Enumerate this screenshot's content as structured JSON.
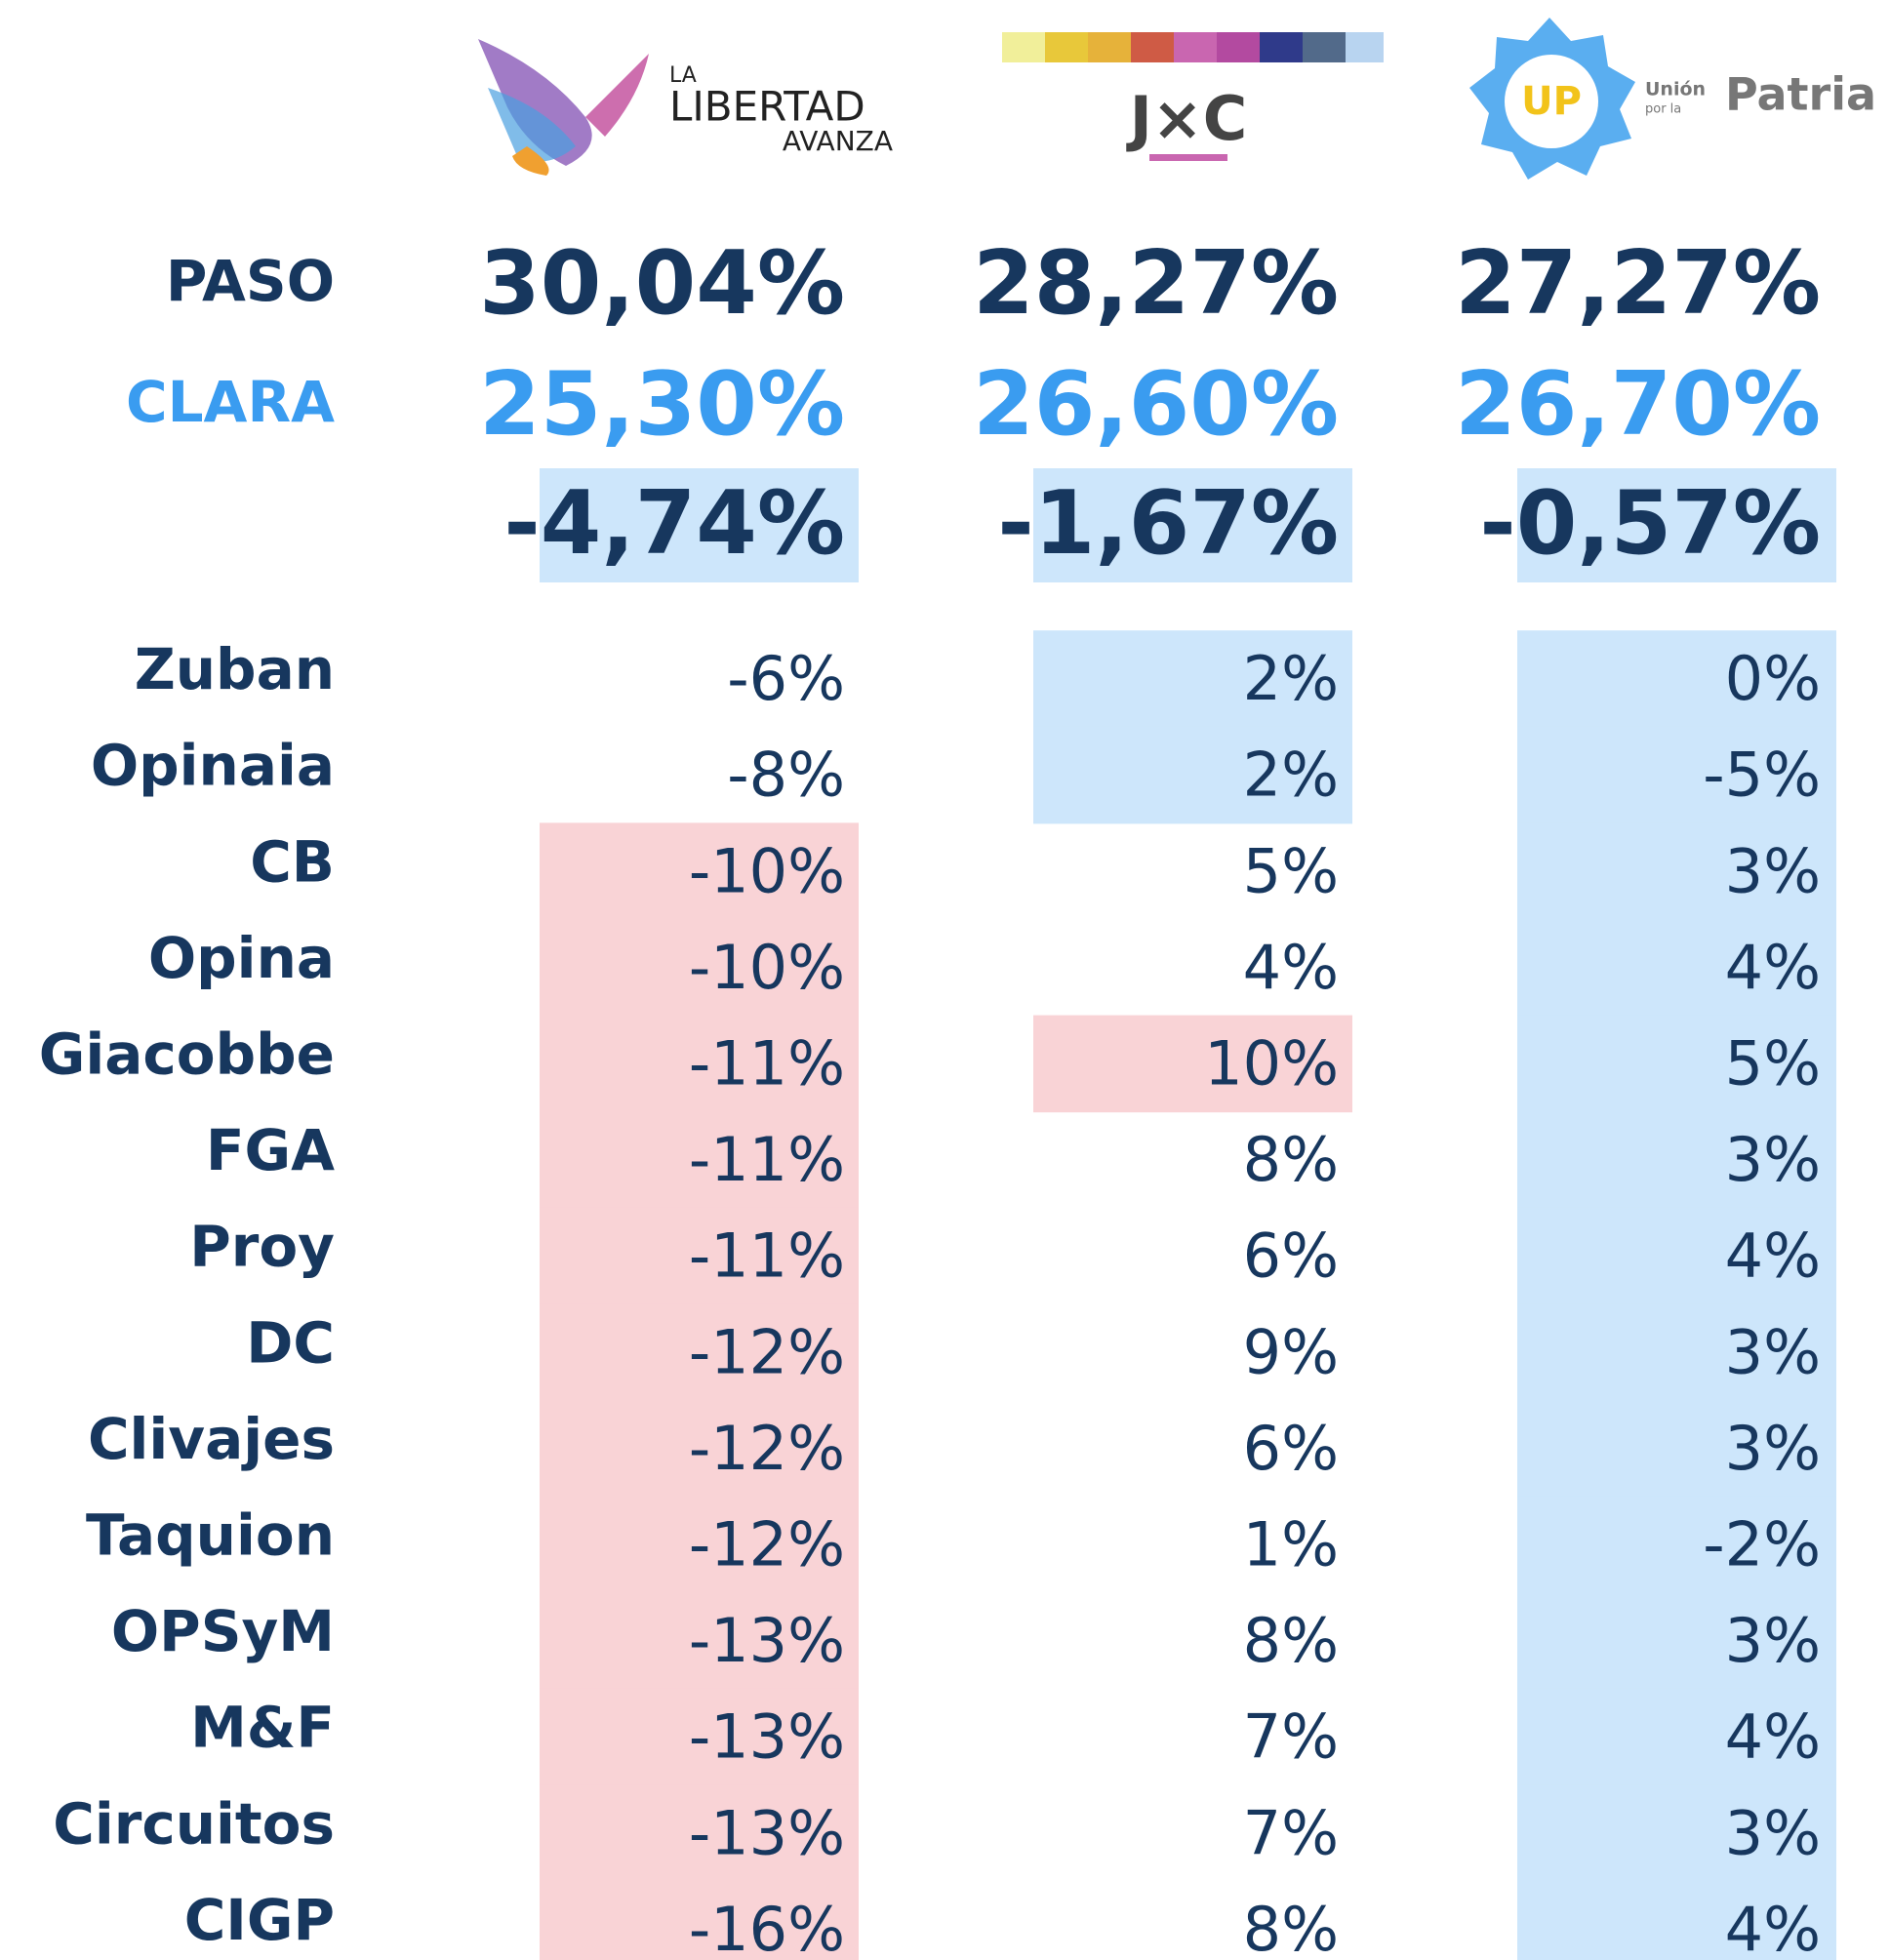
{
  "logos": [
    {
      "lines": [
        "LA",
        "LIBERTAD",
        "AVANZA"
      ]
    },
    {
      "lines": [
        "J×C"
      ]
    },
    {
      "lines": [
        "UP",
        "Unión",
        "por la",
        "Patria"
      ]
    }
  ],
  "summary": [
    {
      "label": "PASO",
      "values": [
        "30,04%",
        "28,27%",
        "27,27%"
      ],
      "color": "#17375e"
    },
    {
      "label": "CLARA",
      "values": [
        "25,30%",
        "26,60%",
        "26,70%"
      ],
      "color": "#3a9cf0"
    },
    {
      "values": [
        "-4,74%",
        "-1,67%",
        "-0,57%"
      ],
      "color": "#17375e",
      "shading": "#cde6fb"
    }
  ],
  "polls": [
    {
      "label": "Zuban",
      "values": [
        "-6%",
        "2%",
        "0%"
      ],
      "shading": [
        null,
        "#cde6fb",
        "#cde6fb"
      ]
    },
    {
      "label": "Opinaia",
      "values": [
        "-8%",
        "2%",
        "-5%"
      ],
      "shading": [
        null,
        "#cde6fb",
        "#cde6fb"
      ]
    },
    {
      "label": "CB",
      "values": [
        "-10%",
        "5%",
        "3%"
      ],
      "shading": [
        "#f9d3d6",
        null,
        "#cde6fb"
      ]
    },
    {
      "label": "Opina",
      "values": [
        "-10%",
        "4%",
        "4%"
      ],
      "shading": [
        "#f9d3d6",
        null,
        "#cde6fb"
      ]
    },
    {
      "label": "Giacobbe",
      "values": [
        "-11%",
        "10%",
        "5%"
      ],
      "shading": [
        "#f9d3d6",
        "#f9d3d6",
        "#cde6fb"
      ]
    },
    {
      "label": "FGA",
      "values": [
        "-11%",
        "8%",
        "3%"
      ],
      "shading": [
        "#f9d3d6",
        null,
        "#cde6fb"
      ]
    },
    {
      "label": "Proy",
      "values": [
        "-11%",
        "6%",
        "4%"
      ],
      "shading": [
        "#f9d3d6",
        null,
        "#cde6fb"
      ]
    },
    {
      "label": "DC",
      "values": [
        "-12%",
        "9%",
        "3%"
      ],
      "shading": [
        "#f9d3d6",
        null,
        "#cde6fb"
      ]
    },
    {
      "label": "Clivajes",
      "values": [
        "-12%",
        "6%",
        "3%"
      ],
      "shading": [
        "#f9d3d6",
        null,
        "#cde6fb"
      ]
    },
    {
      "label": "Taquion",
      "values": [
        "-12%",
        "1%",
        "-2%"
      ],
      "shading": [
        "#f9d3d6",
        null,
        "#cde6fb"
      ]
    },
    {
      "label": "OPSyM",
      "values": [
        "-13%",
        "8%",
        "3%"
      ],
      "shading": [
        "#f9d3d6",
        null,
        "#cde6fb"
      ]
    },
    {
      "label": "M&F",
      "values": [
        "-13%",
        "7%",
        "4%"
      ],
      "shading": [
        "#f9d3d6",
        null,
        "#cde6fb"
      ]
    },
    {
      "label": "Circuitos",
      "values": [
        "-13%",
        "7%",
        "3%"
      ],
      "shading": [
        "#f9d3d6",
        null,
        "#cde6fb"
      ]
    },
    {
      "label": "CIGP",
      "values": [
        "-16%",
        "8%",
        "4%"
      ],
      "shading": [
        "#f9d3d6",
        null,
        "#cde6fb"
      ]
    }
  ]
}
